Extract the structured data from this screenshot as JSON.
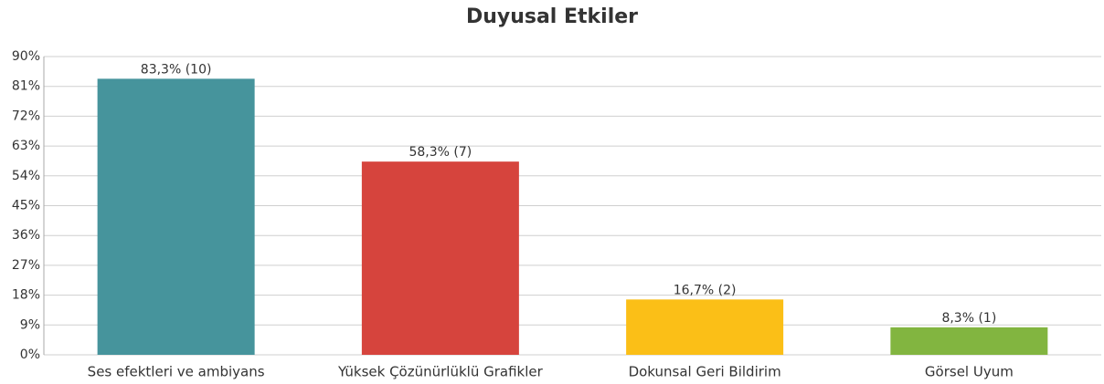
{
  "chart_data": {
    "type": "bar",
    "title": "Duyusal Etkiler",
    "categories": [
      "Ses efektleri ve ambiyans",
      "Yüksek Çözünürlüklü Grafikler",
      "Dokunsal Geri Bildirim",
      "Görsel Uyum"
    ],
    "values": [
      83.3,
      58.3,
      16.7,
      8.3
    ],
    "value_labels": [
      "83,3% (10)",
      "58,3% (7)",
      "16,7% (2)",
      "8,3% (1)"
    ],
    "colors": [
      "#46949c",
      "#d6443d",
      "#fbbf17",
      "#82b540"
    ],
    "ylim": [
      0,
      90
    ],
    "yticks": [
      {
        "value": 0,
        "label": "0%"
      },
      {
        "value": 9,
        "label": "9%"
      },
      {
        "value": 18,
        "label": "18%"
      },
      {
        "value": 27,
        "label": "27%"
      },
      {
        "value": 36,
        "label": "36%"
      },
      {
        "value": 45,
        "label": "45%"
      },
      {
        "value": 54,
        "label": "54%"
      },
      {
        "value": 63,
        "label": "63%"
      },
      {
        "value": 72,
        "label": "72%"
      },
      {
        "value": 81,
        "label": "81%"
      },
      {
        "value": 90,
        "label": "90%"
      }
    ],
    "grid": true
  }
}
